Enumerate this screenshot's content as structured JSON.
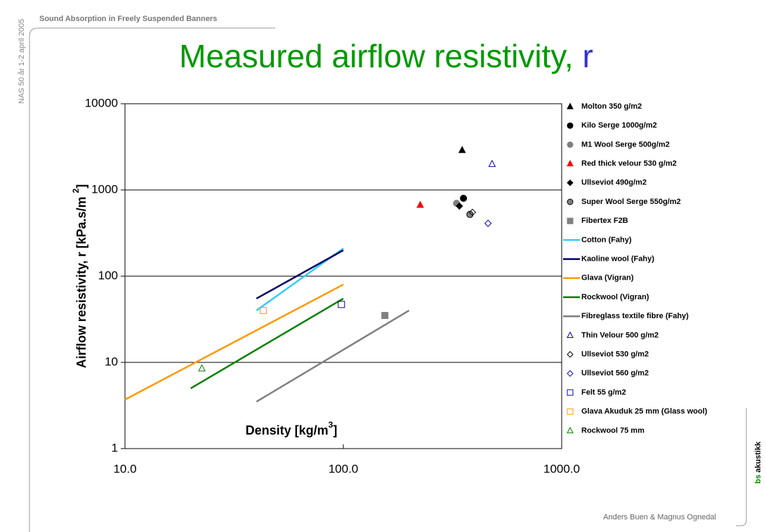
{
  "header": "Sound Absorption in Freely Suspended Banners",
  "side_note": "NAS 50 år 1-2 april 2005",
  "footer": "Anders Buen & Magnus Ognedal",
  "logo": {
    "accent": "bs",
    "text": "akustikk"
  },
  "chart_data": {
    "type": "scatter",
    "title": {
      "text": "Measured airflow resistivity, ",
      "symbol": "r"
    },
    "x_label": {
      "text": "Density [kg/m",
      "sup": "3",
      "end": "]"
    },
    "y_label": {
      "text": "Airflow resistivity, r [kPa.s/m ",
      "sup": "2",
      "end": "]"
    },
    "log_x": true,
    "log_y": true,
    "grid": true,
    "xlim": [
      10,
      1000
    ],
    "xticks": [
      {
        "value": 10,
        "label": "10.0"
      },
      {
        "value": 100,
        "label": "100.0"
      },
      {
        "value": 1000,
        "label": "1000.0"
      }
    ],
    "ylim": [
      1,
      10000
    ],
    "yticks": [
      1,
      10,
      100,
      1000,
      10000
    ],
    "legend": "right",
    "series": [
      {
        "name": "Molton 350 g/m2",
        "kind": "point",
        "marker": "triangle",
        "filled": true,
        "color": "#000000",
        "x": [
          350
        ],
        "values": [
          2900
        ]
      },
      {
        "name": "Kilo Serge 1000g/m2",
        "kind": "point",
        "marker": "circle",
        "filled": true,
        "color": "#000000",
        "x": [
          355
        ],
        "values": [
          800
        ]
      },
      {
        "name": "M1 Wool Serge 500g/m2",
        "kind": "point",
        "marker": "circle",
        "filled": true,
        "color": "#808080",
        "x": [
          330
        ],
        "values": [
          700
        ]
      },
      {
        "name": "Red thick velour 530 g/m2",
        "kind": "point",
        "marker": "triangle",
        "filled": true,
        "color": "#ff0000",
        "x": [
          225
        ],
        "values": [
          670
        ]
      },
      {
        "name": "Ullseviot 490g/m2",
        "kind": "point",
        "marker": "diamond",
        "filled": true,
        "color": "#000000",
        "x": [
          340
        ],
        "values": [
          650
        ]
      },
      {
        "name": "Super Wool Serge 550g/m2",
        "kind": "point",
        "marker": "circle",
        "filled": true,
        "color": "#808080",
        "stroke": "#000000",
        "x": [
          380
        ],
        "values": [
          520
        ]
      },
      {
        "name": "Fibertex F2B",
        "kind": "point",
        "marker": "square",
        "filled": true,
        "color": "#808080",
        "x": [
          155
        ],
        "values": [
          35
        ]
      },
      {
        "name": "Cotton (Fahy)",
        "kind": "line",
        "color": "#33ccff",
        "x": [
          40,
          100
        ],
        "values": [
          40,
          210
        ]
      },
      {
        "name": "Kaoline wool (Fahy)",
        "kind": "line",
        "color": "#000066",
        "x": [
          40,
          100
        ],
        "values": [
          55,
          200
        ]
      },
      {
        "name": "Glava (Vigran)",
        "kind": "line",
        "color": "#ff9900",
        "x": [
          10,
          100
        ],
        "values": [
          3.7,
          80
        ]
      },
      {
        "name": "Rockwool (Vigran)",
        "kind": "line",
        "color": "#008000",
        "x": [
          20,
          100
        ],
        "values": [
          5,
          55
        ]
      },
      {
        "name": "Fibreglass textile fibre (Fahy)",
        "kind": "line",
        "color": "#808080",
        "x": [
          40,
          200
        ],
        "values": [
          3.5,
          40
        ]
      },
      {
        "name": "Thin Velour 500 g/m2",
        "kind": "point",
        "marker": "triangle",
        "filled": false,
        "color": "#000099",
        "x": [
          480
        ],
        "values": [
          2000
        ]
      },
      {
        "name": "Ullseviot 530 g/m2",
        "kind": "point",
        "marker": "diamond",
        "filled": false,
        "color": "#000000",
        "x": [
          390
        ],
        "values": [
          550
        ]
      },
      {
        "name": "Ullseviot 560 g/m2",
        "kind": "point",
        "marker": "diamond",
        "filled": false,
        "color": "#0000cc",
        "x": [
          460
        ],
        "values": [
          410
        ]
      },
      {
        "name": "Felt 55 g/m2",
        "kind": "point",
        "marker": "square",
        "filled": false,
        "color": "#0000cc",
        "x": [
          98
        ],
        "values": [
          47
        ]
      },
      {
        "name": "Glava Akuduk 25 mm (Glass wool)",
        "kind": "point",
        "marker": "square",
        "filled": false,
        "color": "#ff9900",
        "x": [
          43
        ],
        "values": [
          40
        ]
      },
      {
        "name": "Rockwool 75 mm",
        "kind": "point",
        "marker": "triangle",
        "filled": false,
        "color": "#008000",
        "x": [
          22.5
        ],
        "values": [
          8.5
        ]
      }
    ]
  }
}
